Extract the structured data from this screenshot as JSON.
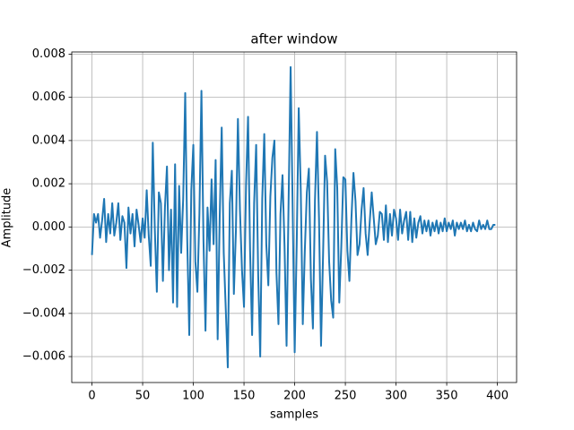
{
  "chart_data": {
    "type": "line",
    "title": "after window",
    "xlabel": "samples",
    "ylabel": "Amplitude",
    "color": "#1f77b4",
    "grid": true,
    "xlim": [
      -19.95,
      418.95
    ],
    "ylim": [
      -0.0072,
      0.0081
    ],
    "xticks": [
      0,
      50,
      100,
      150,
      200,
      250,
      300,
      350,
      400
    ],
    "yticks": [
      {
        "value": -0.006,
        "label": "−0.006"
      },
      {
        "value": -0.004,
        "label": "−0.004"
      },
      {
        "value": -0.002,
        "label": "−0.002"
      },
      {
        "value": 0,
        "label": "0.000"
      },
      0.002,
      0.004,
      0.006,
      0.008
    ],
    "x": [
      0,
      2,
      4,
      6,
      8,
      10,
      12,
      14,
      16,
      18,
      20,
      22,
      24,
      26,
      28,
      30,
      32,
      34,
      36,
      38,
      40,
      42,
      44,
      46,
      48,
      50,
      52,
      54,
      56,
      58,
      60,
      62,
      64,
      66,
      68,
      70,
      72,
      74,
      76,
      78,
      80,
      82,
      84,
      86,
      88,
      90,
      92,
      94,
      96,
      98,
      100,
      102,
      104,
      106,
      108,
      110,
      112,
      114,
      116,
      118,
      120,
      122,
      124,
      126,
      128,
      130,
      132,
      134,
      136,
      138,
      140,
      142,
      144,
      146,
      148,
      150,
      152,
      154,
      156,
      158,
      160,
      162,
      164,
      166,
      168,
      170,
      172,
      174,
      176,
      178,
      180,
      182,
      184,
      186,
      188,
      190,
      192,
      194,
      196,
      198,
      200,
      202,
      204,
      206,
      208,
      210,
      212,
      214,
      216,
      218,
      220,
      222,
      224,
      226,
      228,
      230,
      232,
      234,
      236,
      238,
      240,
      242,
      244,
      246,
      248,
      250,
      252,
      254,
      256,
      258,
      260,
      262,
      264,
      266,
      268,
      270,
      272,
      274,
      276,
      278,
      280,
      282,
      284,
      286,
      288,
      290,
      292,
      294,
      296,
      298,
      300,
      302,
      304,
      306,
      308,
      310,
      312,
      314,
      316,
      318,
      320,
      322,
      324,
      326,
      328,
      330,
      332,
      334,
      336,
      338,
      340,
      342,
      344,
      346,
      348,
      350,
      352,
      354,
      356,
      358,
      360,
      362,
      364,
      366,
      368,
      370,
      372,
      374,
      376,
      378,
      380,
      382,
      384,
      386,
      388,
      390,
      392,
      394,
      396,
      398
    ],
    "values": [
      -0.0013,
      0.0006,
      0.0002,
      0.0006,
      -0.0005,
      0.0003,
      0.0013,
      -0.0007,
      0.0006,
      -0.0003,
      0.0011,
      -0.0004,
      0.0002,
      0.0011,
      -0.0006,
      0.0005,
      0.0002,
      -0.0019,
      0.0009,
      -0.0003,
      0.0006,
      -0.0009,
      0.0008,
      0.0001,
      -0.0007,
      0.0004,
      -0.0005,
      0.0017,
      -0.0004,
      -0.0018,
      0.0039,
      -0.0001,
      -0.003,
      0.0016,
      0.0011,
      -0.0025,
      0.0009,
      0.0028,
      -0.002,
      0.0008,
      -0.0035,
      0.0029,
      -0.0037,
      0.0019,
      -0.0012,
      0.0013,
      0.0062,
      -0.0006,
      -0.005,
      0.0017,
      0.0038,
      -0.0016,
      -0.003,
      0.0006,
      0.0063,
      -0.0006,
      -0.0048,
      0.0009,
      -0.0011,
      0.0022,
      -0.0008,
      0.0031,
      -0.0052,
      0.0004,
      0.0046,
      -0.0012,
      -0.0038,
      -0.0065,
      0.0011,
      0.0026,
      -0.0031,
      -0.0002,
      0.005,
      0.0008,
      -0.002,
      -0.0037,
      0.0019,
      0.0051,
      -0.0011,
      -0.005,
      0.0011,
      0.0038,
      -0.0022,
      -0.006,
      0.0013,
      0.0043,
      -0.0008,
      -0.0027,
      0.0014,
      0.0032,
      0.004,
      -0.0021,
      -0.0045,
      0.0006,
      0.0024,
      -0.0009,
      -0.0055,
      0.0012,
      0.0074,
      0.0009,
      -0.0058,
      -0.0008,
      0.0055,
      0.0017,
      -0.0045,
      -0.0011,
      0.0016,
      0.0027,
      -0.0024,
      -0.0047,
      0.0012,
      0.0044,
      0.0004,
      -0.0055,
      -0.0013,
      0.0033,
      0.0021,
      -0.0016,
      -0.0034,
      -0.0042,
      0.0036,
      0.0018,
      -0.0035,
      -0.0009,
      0.0023,
      0.0022,
      -0.0011,
      -0.0025,
      0.0004,
      0.0025,
      0.0012,
      -0.0013,
      -0.0008,
      0.0008,
      0.0018,
      -0.0003,
      -0.0013,
      0.0002,
      0.0016,
      0.0004,
      -0.0008,
      -0.0004,
      0.0007,
      0.0006,
      -0.0006,
      0.001,
      -0.0007,
      0.0006,
      -0.0004,
      0.0008,
      0.0004,
      -0.0006,
      0.0008,
      -0.0003,
      0.0003,
      0.0007,
      -0.0006,
      0.0007,
      -0.0007,
      0.0004,
      -0.0005,
      0.0002,
      0.0005,
      -0.0003,
      0.0003,
      -0.0002,
      0.0003,
      -0.0004,
      0.0002,
      -0.0002,
      0.0003,
      -0.0003,
      0.0002,
      -0.0002,
      0.0004,
      -0.0002,
      0.0002,
      -0.0001,
      0.0003,
      -0.0004,
      0.0002,
      -0.0001,
      0.0002,
      -0.0001,
      0.0003,
      -0.0002,
      0.0001,
      -0.0002,
      0.0002,
      -0.0001,
      -0.0002,
      0.0003,
      -0.0001,
      0.0001,
      -0.0001,
      0.0003,
      -0.0001,
      -0.0001,
      0.0001,
      0.0001
    ]
  }
}
